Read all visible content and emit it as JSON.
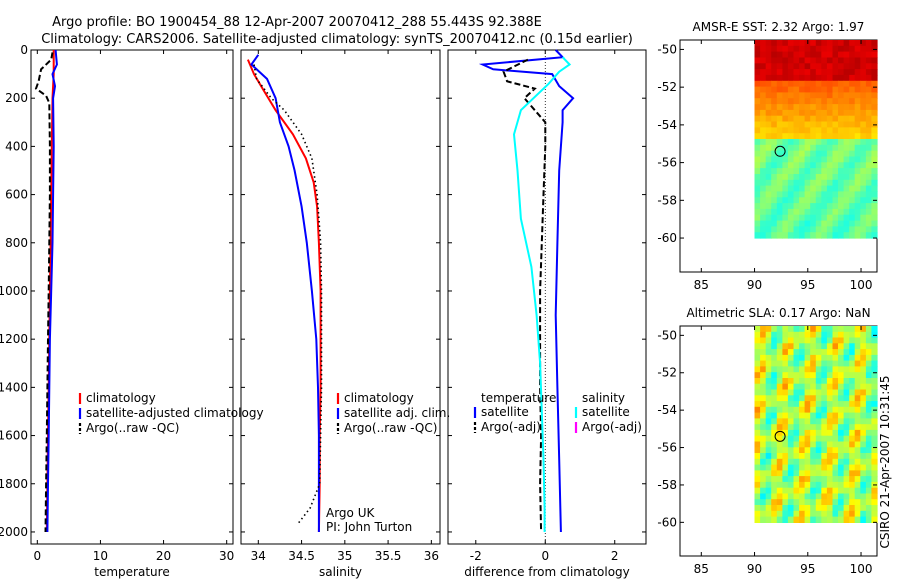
{
  "header": {
    "title_line1": "Argo profile: BO 1900454_88 12-Apr-2007 20070412_288 55.443S 92.388E",
    "title_line2": "Climatology: CARS2006. Satellite-adjusted climatology: synTS_20070412.nc (0.15d earlier)"
  },
  "footer": {
    "stamp": "CSIRO 21-Apr-2007 10:31:45"
  },
  "colors": {
    "red": "#ff0000",
    "blue": "#0000ff",
    "cyan": "#00ffff",
    "black": "#000000",
    "magenta": "#ff00ff"
  },
  "chart_data": [
    {
      "type": "line",
      "id": "temperature",
      "xlabel": "temperature",
      "ylabel": "",
      "xlim": [
        -1,
        31
      ],
      "ylim": [
        2050,
        0
      ],
      "xticks": [
        0,
        10,
        20,
        30
      ],
      "yticks": [
        0,
        200,
        400,
        600,
        800,
        1000,
        1200,
        1400,
        1600,
        1800,
        2000
      ],
      "legend": [
        "climatology",
        "satellite-adjusted climatology",
        "Argo(..raw -QC)"
      ],
      "legend_position": "lower-right",
      "series": [
        {
          "name": "climatology",
          "color": "red",
          "style": "solid",
          "points": [
            [
              2.6,
              0
            ],
            [
              2.6,
              100
            ],
            [
              2.4,
              200
            ],
            [
              2.3,
              400
            ],
            [
              2.2,
              600
            ],
            [
              2.1,
              800
            ],
            [
              2.0,
              1000
            ],
            [
              1.9,
              1200
            ],
            [
              1.8,
              1400
            ],
            [
              1.7,
              1600
            ],
            [
              1.6,
              1800
            ],
            [
              1.5,
              2000
            ]
          ]
        },
        {
          "name": "satellite-adjusted climatology",
          "color": "blue",
          "style": "solid",
          "points": [
            [
              2.9,
              0
            ],
            [
              3.1,
              60
            ],
            [
              2.4,
              100
            ],
            [
              2.8,
              150
            ],
            [
              2.5,
              200
            ],
            [
              2.6,
              400
            ],
            [
              2.5,
              600
            ],
            [
              2.4,
              800
            ],
            [
              2.2,
              1000
            ],
            [
              2.0,
              1200
            ],
            [
              1.9,
              1400
            ],
            [
              1.8,
              1600
            ],
            [
              1.7,
              1800
            ],
            [
              1.6,
              2000
            ]
          ]
        },
        {
          "name": "Argo(..raw -QC)",
          "color": "black",
          "style": "dashed",
          "points": [
            [
              2.4,
              10
            ],
            [
              2.2,
              40
            ],
            [
              0.6,
              80
            ],
            [
              0.2,
              130
            ],
            [
              -0.2,
              160
            ],
            [
              1.4,
              190
            ],
            [
              1.9,
              220
            ],
            [
              2.0,
              400
            ],
            [
              2.0,
              600
            ],
            [
              1.9,
              800
            ],
            [
              1.8,
              1000
            ],
            [
              1.7,
              1200
            ],
            [
              1.6,
              1400
            ],
            [
              1.5,
              1600
            ],
            [
              1.4,
              1800
            ],
            [
              1.3,
              2000
            ]
          ]
        }
      ]
    },
    {
      "type": "line",
      "id": "salinity",
      "xlabel": "salinity",
      "xlim": [
        33.8,
        36.1
      ],
      "ylim": [
        2050,
        0
      ],
      "xticks": [
        34,
        34.5,
        35,
        35.5,
        36
      ],
      "yticks": [
        0,
        200,
        400,
        600,
        800,
        1000,
        1200,
        1400,
        1600,
        1800,
        2000
      ],
      "legend": [
        "climatology",
        "satellite adj. clim.",
        "Argo(..raw -QC)"
      ],
      "legend_position": "lower-right",
      "annotations": [
        "Argo UK",
        "PI: John Turton"
      ],
      "series": [
        {
          "name": "climatology",
          "color": "red",
          "style": "solid",
          "points": [
            [
              33.88,
              40
            ],
            [
              33.95,
              100
            ],
            [
              34.05,
              160
            ],
            [
              34.2,
              250
            ],
            [
              34.4,
              350
            ],
            [
              34.55,
              450
            ],
            [
              34.64,
              550
            ],
            [
              34.68,
              650
            ],
            [
              34.7,
              800
            ],
            [
              34.72,
              1000
            ],
            [
              34.72,
              1200
            ],
            [
              34.72,
              1400
            ],
            [
              34.71,
              1600
            ],
            [
              34.71,
              1800
            ],
            [
              34.7,
              2000
            ]
          ]
        },
        {
          "name": "satellite adj. clim.",
          "color": "blue",
          "style": "solid",
          "points": [
            [
              34.0,
              20
            ],
            [
              33.92,
              60
            ],
            [
              34.1,
              120
            ],
            [
              34.2,
              200
            ],
            [
              34.25,
              300
            ],
            [
              34.35,
              400
            ],
            [
              34.42,
              500
            ],
            [
              34.5,
              650
            ],
            [
              34.56,
              800
            ],
            [
              34.62,
              1000
            ],
            [
              34.67,
              1200
            ],
            [
              34.69,
              1400
            ],
            [
              34.7,
              1600
            ],
            [
              34.7,
              1800
            ],
            [
              34.7,
              2000
            ]
          ]
        },
        {
          "name": "Argo(..raw -QC)",
          "color": "black",
          "style": "dotted",
          "points": [
            [
              33.95,
              60
            ],
            [
              33.98,
              120
            ],
            [
              34.15,
              200
            ],
            [
              34.3,
              250
            ],
            [
              34.5,
              350
            ],
            [
              34.62,
              450
            ],
            [
              34.68,
              600
            ],
            [
              34.7,
              700
            ],
            [
              34.72,
              800
            ],
            [
              34.73,
              1000
            ],
            [
              34.73,
              1200
            ],
            [
              34.73,
              1400
            ],
            [
              34.72,
              1600
            ],
            [
              34.71,
              1800
            ],
            [
              34.6,
              1900
            ],
            [
              34.45,
              1970
            ]
          ]
        }
      ]
    },
    {
      "type": "line",
      "id": "difference",
      "xlabel": "difference from climatology",
      "xlim": [
        -2.8,
        2.9
      ],
      "ylim": [
        2050,
        0
      ],
      "xticks": [
        -2,
        0,
        2
      ],
      "yticks": [
        0,
        200,
        400,
        600,
        800,
        1000,
        1200,
        1400,
        1600,
        1800,
        2000
      ],
      "legend_groups": [
        {
          "title": "temperature",
          "entries": [
            "satellite",
            "Argo(-adj)"
          ]
        },
        {
          "title": "salinity",
          "entries": [
            "satellite",
            "Argo(-adj)"
          ]
        }
      ],
      "legend_position": "lower-center",
      "series": [
        {
          "name": "temperature satellite",
          "color": "blue",
          "style": "solid",
          "points": [
            [
              0.3,
              0
            ],
            [
              0.5,
              30
            ],
            [
              -1.8,
              60
            ],
            [
              -1.5,
              80
            ],
            [
              0.2,
              100
            ],
            [
              0.4,
              150
            ],
            [
              0.8,
              200
            ],
            [
              0.5,
              250
            ],
            [
              0.5,
              300
            ],
            [
              0.4,
              500
            ],
            [
              0.35,
              800
            ],
            [
              0.3,
              1100
            ],
            [
              0.35,
              1400
            ],
            [
              0.4,
              1700
            ],
            [
              0.45,
              2000
            ]
          ]
        },
        {
          "name": "temperature Argo(-adj)",
          "color": "black",
          "style": "dashed",
          "points": [
            [
              -0.5,
              40
            ],
            [
              -1.2,
              90
            ],
            [
              -1.1,
              130
            ],
            [
              -0.3,
              160
            ],
            [
              -0.6,
              200
            ],
            [
              0.0,
              300
            ],
            [
              0.0,
              400
            ],
            [
              -0.05,
              600
            ],
            [
              -0.1,
              800
            ],
            [
              -0.15,
              1000
            ],
            [
              -0.15,
              1200
            ],
            [
              -0.15,
              1400
            ],
            [
              -0.12,
              1600
            ],
            [
              -0.15,
              1800
            ],
            [
              -0.12,
              2000
            ]
          ]
        },
        {
          "name": "salinity satellite",
          "color": "cyan",
          "style": "solid",
          "points": [
            [
              0.5,
              30
            ],
            [
              0.7,
              60
            ],
            [
              0.4,
              90
            ],
            [
              0.1,
              140
            ],
            [
              -0.7,
              250
            ],
            [
              -0.9,
              350
            ],
            [
              -0.8,
              500
            ],
            [
              -0.7,
              700
            ],
            [
              -0.4,
              900
            ],
            [
              -0.25,
              1100
            ],
            [
              -0.15,
              1300
            ],
            [
              -0.1,
              1500
            ],
            [
              -0.05,
              1700
            ],
            [
              -0.02,
              1900
            ],
            [
              -0.02,
              2000
            ]
          ]
        },
        {
          "name": "salinity Argo(-adj)",
          "color": "magenta",
          "style": "solid",
          "points": []
        }
      ]
    },
    {
      "type": "heatmap",
      "id": "sst",
      "title_label": "AMSR-E SST:",
      "title_value": "2.32",
      "argo_label": "Argo:",
      "argo_value": "1.97",
      "xlim": [
        83,
        101.5
      ],
      "ylim": [
        -61.8,
        -49.5
      ],
      "xticks": [
        85,
        90,
        95,
        100
      ],
      "yticks": [
        -50,
        -52,
        -54,
        -56,
        -58,
        -60
      ],
      "data_extent": {
        "lon": [
          90,
          101.5
        ],
        "lat": [
          -60,
          -49.5
        ]
      },
      "marker": {
        "lon": 92.4,
        "lat": -55.4
      }
    },
    {
      "type": "heatmap",
      "id": "sla",
      "title_label": "Altimetric SLA:",
      "title_value": "0.17",
      "argo_label": "Argo:",
      "argo_value": "NaN",
      "xlim": [
        83,
        101.5
      ],
      "ylim": [
        -61.8,
        -49.5
      ],
      "xticks": [
        85,
        90,
        95,
        100
      ],
      "yticks": [
        -50,
        -52,
        -54,
        -56,
        -58,
        -60
      ],
      "data_extent": {
        "lon": [
          90,
          101.5
        ],
        "lat": [
          -60,
          -49.5
        ]
      },
      "marker": {
        "lon": 92.4,
        "lat": -55.4
      }
    }
  ]
}
